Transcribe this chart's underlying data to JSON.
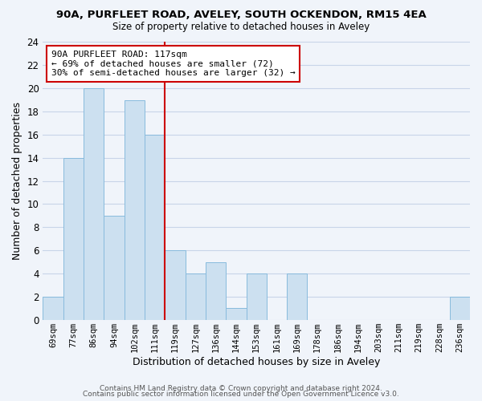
{
  "title1": "90A, PURFLEET ROAD, AVELEY, SOUTH OCKENDON, RM15 4EA",
  "title2": "Size of property relative to detached houses in Aveley",
  "xlabel": "Distribution of detached houses by size in Aveley",
  "ylabel": "Number of detached properties",
  "bar_labels": [
    "69sqm",
    "77sqm",
    "86sqm",
    "94sqm",
    "102sqm",
    "111sqm",
    "119sqm",
    "127sqm",
    "136sqm",
    "144sqm",
    "153sqm",
    "161sqm",
    "169sqm",
    "178sqm",
    "186sqm",
    "194sqm",
    "203sqm",
    "211sqm",
    "219sqm",
    "228sqm",
    "236sqm"
  ],
  "bar_values": [
    2,
    14,
    20,
    9,
    19,
    16,
    6,
    4,
    5,
    1,
    4,
    0,
    4,
    0,
    0,
    0,
    0,
    0,
    0,
    0,
    2
  ],
  "bar_color": "#cce0f0",
  "bar_edge_color": "#88bbdd",
  "grid_color": "#c8d4e8",
  "bg_color": "#f0f4fa",
  "property_line_color": "#cc0000",
  "annotation_title": "90A PURFLEET ROAD: 117sqm",
  "annotation_line1": "← 69% of detached houses are smaller (72)",
  "annotation_line2": "30% of semi-detached houses are larger (32) →",
  "annotation_box_color": "#ffffff",
  "annotation_box_edge": "#cc0000",
  "ylim": [
    0,
    24
  ],
  "yticks": [
    0,
    2,
    4,
    6,
    8,
    10,
    12,
    14,
    16,
    18,
    20,
    22,
    24
  ],
  "footer1": "Contains HM Land Registry data © Crown copyright and database right 2024.",
  "footer2": "Contains public sector information licensed under the Open Government Licence v3.0."
}
